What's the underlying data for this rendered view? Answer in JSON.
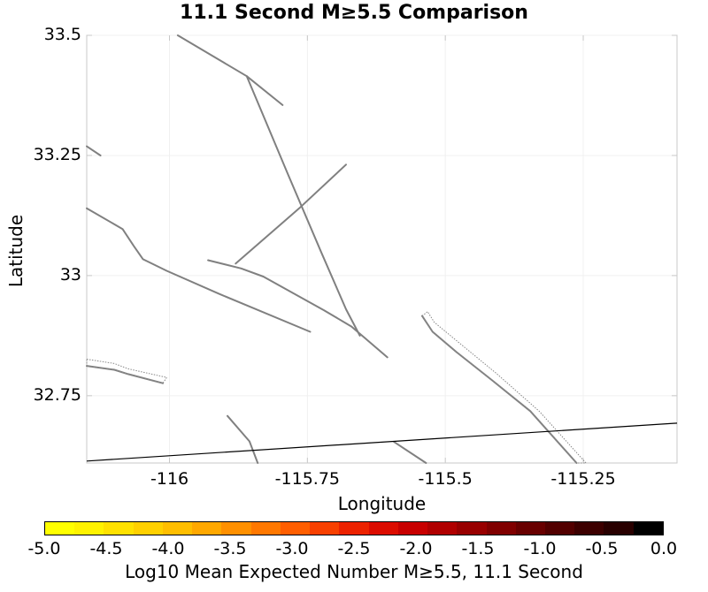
{
  "title": "11.1 Second M≥5.5 Comparison",
  "map": {
    "lon_range": [
      -116.15,
      -115.08
    ],
    "lat_range": [
      32.61,
      33.5
    ],
    "x_label": "Longitude",
    "y_label": "Latitude",
    "x_ticks": [
      {
        "value": -116,
        "label": "-116"
      },
      {
        "value": -115.75,
        "label": "-115.75"
      },
      {
        "value": -115.5,
        "label": "-115.5"
      },
      {
        "value": -115.25,
        "label": "-115.25"
      }
    ],
    "y_ticks": [
      {
        "value": 33.5,
        "label": "33.5"
      },
      {
        "value": 33.25,
        "label": "33.25"
      },
      {
        "value": 33,
        "label": "33"
      },
      {
        "value": 32.75,
        "label": "32.75"
      }
    ],
    "fault_color": "#808080",
    "border_color": "#000000",
    "border_line": [
      [
        -116.15,
        32.614
      ],
      [
        -115.08,
        32.693
      ]
    ],
    "faults": [
      [
        [
          -115.985,
          33.5
        ],
        [
          -115.86,
          33.415
        ],
        [
          -115.795,
          33.355
        ]
      ],
      [
        [
          -115.86,
          33.415
        ],
        [
          -115.786,
          33.213
        ],
        [
          -115.725,
          33.049
        ],
        [
          -115.68,
          32.93
        ],
        [
          -115.655,
          32.875
        ]
      ],
      [
        [
          -116.15,
          33.269
        ],
        [
          -116.125,
          33.25
        ]
      ],
      [
        [
          -116.15,
          33.14
        ],
        [
          -116.085,
          33.097
        ],
        [
          -116.065,
          33.062
        ],
        [
          -116.048,
          33.034
        ],
        [
          -116.005,
          33.01
        ],
        [
          -115.91,
          32.962
        ],
        [
          -115.745,
          32.883
        ]
      ],
      [
        [
          -115.93,
          33.032
        ],
        [
          -115.87,
          33.015
        ],
        [
          -115.83,
          32.998
        ],
        [
          -115.72,
          32.928
        ],
        [
          -115.67,
          32.894
        ],
        [
          -115.605,
          32.83
        ]
      ],
      [
        [
          -115.88,
          33.025
        ],
        [
          -115.77,
          33.135
        ],
        [
          -115.765,
          33.14
        ],
        [
          -115.68,
          33.231
        ]
      ],
      [
        [
          -116.15,
          32.812
        ],
        [
          -116.1,
          32.804
        ],
        [
          -116.075,
          32.795
        ],
        [
          -116.012,
          32.776
        ]
      ],
      [
        [
          -115.895,
          32.708
        ],
        [
          -115.855,
          32.655
        ],
        [
          -115.84,
          32.61
        ]
      ],
      [
        [
          -115.593,
          32.654
        ],
        [
          -115.535,
          32.61
        ]
      ],
      [
        [
          -115.542,
          32.916
        ],
        [
          -115.523,
          32.883
        ],
        [
          -115.48,
          32.841
        ],
        [
          -115.415,
          32.782
        ],
        [
          -115.346,
          32.718
        ],
        [
          -115.262,
          32.61
        ]
      ]
    ],
    "dotted_ruptures": [
      [
        [
          -116.15,
          32.826
        ],
        [
          -116.1,
          32.817
        ],
        [
          -116.075,
          32.806
        ],
        [
          -116.005,
          32.788
        ],
        [
          -116.012,
          32.776
        ],
        [
          -116.075,
          32.795
        ],
        [
          -116.1,
          32.804
        ],
        [
          -116.15,
          32.812
        ]
      ],
      [
        [
          -115.542,
          32.916
        ],
        [
          -115.532,
          32.925
        ],
        [
          -115.52,
          32.903
        ],
        [
          -115.478,
          32.863
        ],
        [
          -115.408,
          32.797
        ],
        [
          -115.33,
          32.718
        ],
        [
          -115.245,
          32.61
        ],
        [
          -115.262,
          32.61
        ],
        [
          -115.346,
          32.718
        ],
        [
          -115.415,
          32.782
        ],
        [
          -115.48,
          32.841
        ],
        [
          -115.523,
          32.883
        ],
        [
          -115.542,
          32.916
        ]
      ]
    ]
  },
  "colorbar": {
    "label": "Log10 Mean Expected Number M≥5.5, 11.1 Second",
    "min": -5.0,
    "max": 0.0,
    "tick_labels": [
      "-5.0",
      "-4.5",
      "-4.0",
      "-3.5",
      "-3.0",
      "-2.5",
      "-2.0",
      "-1.5",
      "-1.0",
      "-0.5",
      "0.0"
    ],
    "colors": [
      "#ffff00",
      "#fff200",
      "#ffe100",
      "#ffd000",
      "#ffbe00",
      "#ffa800",
      "#ff9000",
      "#ff7800",
      "#ff5e00",
      "#f84000",
      "#ec2200",
      "#dc0c00",
      "#c80000",
      "#b00000",
      "#980000",
      "#800000",
      "#680000",
      "#520000",
      "#3c0000",
      "#280000",
      "#000000"
    ]
  }
}
